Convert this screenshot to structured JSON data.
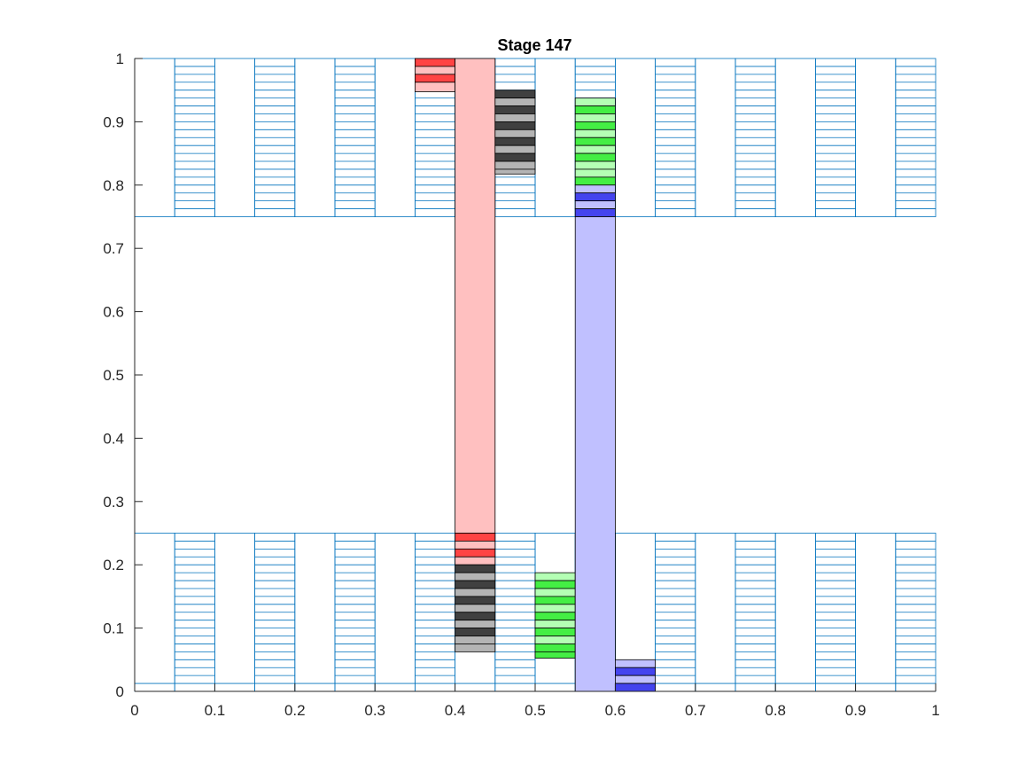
{
  "chart_data": {
    "type": "bar",
    "title": "Stage 147",
    "xlabel": "",
    "ylabel": "",
    "xlim": [
      0,
      1
    ],
    "ylim": [
      0,
      1
    ],
    "grid": false,
    "legend": "none",
    "xticks": [
      "0",
      "0.1",
      "0.2",
      "0.3",
      "0.4",
      "0.5",
      "0.6",
      "0.7",
      "0.8",
      "0.9",
      "1"
    ],
    "yticks": [
      "0",
      "0.1",
      "0.2",
      "0.3",
      "0.4",
      "0.5",
      "0.6",
      "0.7",
      "0.8",
      "0.9",
      "1"
    ],
    "colors": {
      "outline": "#0072BD",
      "red": "#FF4444",
      "red_light": "#FFC0C0",
      "black": "#404040",
      "black_light": "#B4B4B4",
      "green": "#44EE44",
      "green_light": "#B4FFB4",
      "blue": "#4444EE",
      "blue_light": "#C0C0FF"
    },
    "slices": {
      "width": 0.05,
      "step": 0.0125,
      "ranges": [
        [
          0,
          0.25
        ],
        [
          0.75,
          1
        ]
      ]
    },
    "segments": [
      {
        "x": 0.35,
        "y0": 0.9875,
        "y1": 1.0,
        "fill": "red"
      },
      {
        "x": 0.35,
        "y0": 0.975,
        "y1": 0.9875,
        "fill": "red_light"
      },
      {
        "x": 0.35,
        "y0": 0.9625,
        "y1": 0.975,
        "fill": "red"
      },
      {
        "x": 0.35,
        "y0": 0.9475,
        "y1": 0.9625,
        "fill": "red_light"
      },
      {
        "x": 0.4,
        "y0": 0.25,
        "y1": 1.0,
        "fill": "red_light"
      },
      {
        "x": 0.4,
        "y0": 0.2375,
        "y1": 0.25,
        "fill": "red"
      },
      {
        "x": 0.4,
        "y0": 0.225,
        "y1": 0.2375,
        "fill": "red_light"
      },
      {
        "x": 0.4,
        "y0": 0.2125,
        "y1": 0.225,
        "fill": "red"
      },
      {
        "x": 0.4,
        "y0": 0.2,
        "y1": 0.2125,
        "fill": "red_light"
      },
      {
        "x": 0.4,
        "y0": 0.1875,
        "y1": 0.2,
        "fill": "black"
      },
      {
        "x": 0.4,
        "y0": 0.175,
        "y1": 0.1875,
        "fill": "black_light"
      },
      {
        "x": 0.4,
        "y0": 0.1625,
        "y1": 0.175,
        "fill": "black"
      },
      {
        "x": 0.4,
        "y0": 0.15,
        "y1": 0.1625,
        "fill": "black_light"
      },
      {
        "x": 0.4,
        "y0": 0.1375,
        "y1": 0.15,
        "fill": "black"
      },
      {
        "x": 0.4,
        "y0": 0.125,
        "y1": 0.1375,
        "fill": "black_light"
      },
      {
        "x": 0.4,
        "y0": 0.1125,
        "y1": 0.125,
        "fill": "black"
      },
      {
        "x": 0.4,
        "y0": 0.1,
        "y1": 0.1125,
        "fill": "black_light"
      },
      {
        "x": 0.4,
        "y0": 0.0875,
        "y1": 0.1,
        "fill": "black"
      },
      {
        "x": 0.4,
        "y0": 0.075,
        "y1": 0.0875,
        "fill": "black_light"
      },
      {
        "x": 0.4,
        "y0": 0.0625,
        "y1": 0.075,
        "fill": "black_light"
      },
      {
        "x": 0.45,
        "y0": 0.9375,
        "y1": 0.95,
        "fill": "black"
      },
      {
        "x": 0.45,
        "y0": 0.925,
        "y1": 0.9375,
        "fill": "black_light"
      },
      {
        "x": 0.45,
        "y0": 0.9125,
        "y1": 0.925,
        "fill": "black"
      },
      {
        "x": 0.45,
        "y0": 0.9,
        "y1": 0.9125,
        "fill": "black_light"
      },
      {
        "x": 0.45,
        "y0": 0.8875,
        "y1": 0.9,
        "fill": "black"
      },
      {
        "x": 0.45,
        "y0": 0.875,
        "y1": 0.8875,
        "fill": "black_light"
      },
      {
        "x": 0.45,
        "y0": 0.8625,
        "y1": 0.875,
        "fill": "black"
      },
      {
        "x": 0.45,
        "y0": 0.85,
        "y1": 0.8625,
        "fill": "black_light"
      },
      {
        "x": 0.45,
        "y0": 0.8375,
        "y1": 0.85,
        "fill": "black"
      },
      {
        "x": 0.45,
        "y0": 0.825,
        "y1": 0.8375,
        "fill": "black_light"
      },
      {
        "x": 0.45,
        "y0": 0.8175,
        "y1": 0.825,
        "fill": "black_light"
      },
      {
        "x": 0.5,
        "y0": 0.175,
        "y1": 0.1875,
        "fill": "green_light"
      },
      {
        "x": 0.5,
        "y0": 0.1625,
        "y1": 0.175,
        "fill": "green"
      },
      {
        "x": 0.5,
        "y0": 0.15,
        "y1": 0.1625,
        "fill": "green_light"
      },
      {
        "x": 0.5,
        "y0": 0.1375,
        "y1": 0.15,
        "fill": "green"
      },
      {
        "x": 0.5,
        "y0": 0.125,
        "y1": 0.1375,
        "fill": "green_light"
      },
      {
        "x": 0.5,
        "y0": 0.1125,
        "y1": 0.125,
        "fill": "green"
      },
      {
        "x": 0.5,
        "y0": 0.1,
        "y1": 0.1125,
        "fill": "green_light"
      },
      {
        "x": 0.5,
        "y0": 0.0875,
        "y1": 0.1,
        "fill": "green"
      },
      {
        "x": 0.5,
        "y0": 0.075,
        "y1": 0.0875,
        "fill": "green_light"
      },
      {
        "x": 0.5,
        "y0": 0.0625,
        "y1": 0.075,
        "fill": "green"
      },
      {
        "x": 0.5,
        "y0": 0.0525,
        "y1": 0.0625,
        "fill": "green"
      },
      {
        "x": 0.55,
        "y0": 0.925,
        "y1": 0.9375,
        "fill": "green_light"
      },
      {
        "x": 0.55,
        "y0": 0.9125,
        "y1": 0.925,
        "fill": "green"
      },
      {
        "x": 0.55,
        "y0": 0.9,
        "y1": 0.9125,
        "fill": "green_light"
      },
      {
        "x": 0.55,
        "y0": 0.8875,
        "y1": 0.9,
        "fill": "green"
      },
      {
        "x": 0.55,
        "y0": 0.875,
        "y1": 0.8875,
        "fill": "green_light"
      },
      {
        "x": 0.55,
        "y0": 0.8625,
        "y1": 0.875,
        "fill": "green"
      },
      {
        "x": 0.55,
        "y0": 0.85,
        "y1": 0.8625,
        "fill": "green_light"
      },
      {
        "x": 0.55,
        "y0": 0.8375,
        "y1": 0.85,
        "fill": "green"
      },
      {
        "x": 0.55,
        "y0": 0.825,
        "y1": 0.8375,
        "fill": "green_light"
      },
      {
        "x": 0.55,
        "y0": 0.8125,
        "y1": 0.825,
        "fill": "green_light"
      },
      {
        "x": 0.55,
        "y0": 0.8,
        "y1": 0.8125,
        "fill": "green"
      },
      {
        "x": 0.55,
        "y0": 0.7875,
        "y1": 0.8,
        "fill": "blue_light"
      },
      {
        "x": 0.55,
        "y0": 0.775,
        "y1": 0.7875,
        "fill": "blue"
      },
      {
        "x": 0.55,
        "y0": 0.7625,
        "y1": 0.775,
        "fill": "blue_light"
      },
      {
        "x": 0.55,
        "y0": 0.75,
        "y1": 0.7625,
        "fill": "blue"
      },
      {
        "x": 0.55,
        "y0": 0.0,
        "y1": 0.75,
        "fill": "blue_light"
      },
      {
        "x": 0.6,
        "y0": 0.0375,
        "y1": 0.05,
        "fill": "blue_light"
      },
      {
        "x": 0.6,
        "y0": 0.025,
        "y1": 0.0375,
        "fill": "blue"
      },
      {
        "x": 0.6,
        "y0": 0.0125,
        "y1": 0.025,
        "fill": "blue_light"
      },
      {
        "x": 0.6,
        "y0": 0.0,
        "y1": 0.0125,
        "fill": "blue"
      }
    ]
  }
}
